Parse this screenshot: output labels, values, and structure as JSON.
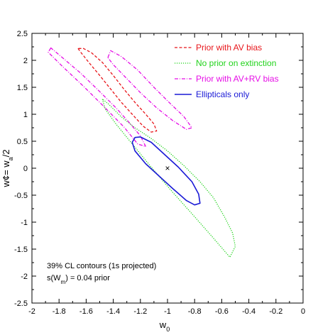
{
  "chart_data": {
    "type": "line",
    "xlabel": "w",
    "xlabel_sub": "0",
    "ylabel": "w¢= w",
    "ylabel_sub": "a",
    "ylabel_suffix": "/2",
    "xlim": [
      -2,
      0
    ],
    "ylim": [
      -2.5,
      2.5
    ],
    "x_ticks": [
      -2,
      -1.8,
      -1.6,
      -1.4,
      -1.2,
      -1,
      -0.8,
      -0.6,
      -0.4,
      -0.2,
      0
    ],
    "x_tick_labels": [
      "-2",
      "-1.8",
      "-1.6",
      "-1.4",
      "-1.2",
      "-1",
      "-0.8",
      "-0.6",
      "-0.4",
      "-0.2",
      "0"
    ],
    "y_ticks": [
      -2.5,
      -2,
      -1.5,
      -1,
      -0.5,
      0,
      0.5,
      1,
      1.5,
      2,
      2.5
    ],
    "y_tick_labels": [
      "-2.5",
      "-2",
      "-1.5",
      "-1",
      "-0.5",
      "0",
      "0.5",
      "1",
      "1.5",
      "2",
      "2.5"
    ],
    "grid": false,
    "legend_position": "top-right",
    "fiducial_marker": {
      "x": -1,
      "y": 0,
      "symbol": "×"
    },
    "annotations": [
      "39% CL contours (1s projected)",
      "s(W",
      "m",
      ") = 0.04 prior"
    ],
    "series": [
      {
        "name": "Prior with AV bias",
        "color": "#e8161b",
        "dash": "dashed",
        "points": [
          [
            -1.66,
            2.22
          ],
          [
            -1.64,
            2.15
          ],
          [
            -1.58,
            1.96
          ],
          [
            -1.5,
            1.72
          ],
          [
            -1.42,
            1.47
          ],
          [
            -1.34,
            1.22
          ],
          [
            -1.26,
            1.0
          ],
          [
            -1.18,
            0.78
          ],
          [
            -1.12,
            0.67
          ],
          [
            -1.08,
            0.69
          ],
          [
            -1.1,
            0.82
          ],
          [
            -1.16,
            1.0
          ],
          [
            -1.24,
            1.22
          ],
          [
            -1.32,
            1.46
          ],
          [
            -1.4,
            1.72
          ],
          [
            -1.48,
            1.96
          ],
          [
            -1.56,
            2.14
          ],
          [
            -1.62,
            2.22
          ],
          [
            -1.66,
            2.22
          ]
        ]
      },
      {
        "name": "No prior on extinction",
        "color": "#22d31c",
        "dash": "dotted",
        "points": [
          [
            -1.48,
            1.28
          ],
          [
            -1.46,
            1.1
          ],
          [
            -1.38,
            0.82
          ],
          [
            -1.26,
            0.45
          ],
          [
            -1.12,
            0.02
          ],
          [
            -0.96,
            -0.45
          ],
          [
            -0.8,
            -0.9
          ],
          [
            -0.66,
            -1.3
          ],
          [
            -0.54,
            -1.65
          ],
          [
            -0.5,
            -1.45
          ],
          [
            -0.52,
            -1.2
          ],
          [
            -0.58,
            -0.9
          ],
          [
            -0.66,
            -0.55
          ],
          [
            -0.76,
            -0.25
          ],
          [
            -0.88,
            0.05
          ],
          [
            -1.0,
            0.32
          ],
          [
            -1.12,
            0.55
          ],
          [
            -1.24,
            0.75
          ],
          [
            -1.34,
            0.95
          ],
          [
            -1.44,
            1.2
          ],
          [
            -1.48,
            1.28
          ]
        ]
      },
      {
        "name": "Prior with AV+RV bias",
        "color": "#e60ee6",
        "dash": "dash-dot",
        "points": [
          [
            -1.86,
            2.23
          ],
          [
            -1.88,
            2.15
          ],
          [
            -1.78,
            1.9
          ],
          [
            -1.62,
            1.52
          ],
          [
            -1.46,
            1.12
          ],
          [
            -1.32,
            0.76
          ],
          [
            -1.22,
            0.45
          ],
          [
            -1.16,
            0.4
          ],
          [
            -1.2,
            0.6
          ],
          [
            -1.28,
            0.84
          ],
          [
            -1.38,
            1.12
          ],
          [
            -1.5,
            1.42
          ],
          [
            -1.64,
            1.76
          ],
          [
            -1.78,
            2.06
          ],
          [
            -1.86,
            2.23
          ]
        ],
        "points_b": [
          [
            -1.44,
            2.05
          ],
          [
            -1.42,
            2.18
          ],
          [
            -1.34,
            2.07
          ],
          [
            -1.22,
            1.82
          ],
          [
            -1.1,
            1.5
          ],
          [
            -0.98,
            1.2
          ],
          [
            -0.88,
            0.96
          ],
          [
            -0.82,
            0.75
          ],
          [
            -0.86,
            0.72
          ],
          [
            -0.96,
            0.88
          ],
          [
            -1.08,
            1.12
          ],
          [
            -1.2,
            1.4
          ],
          [
            -1.3,
            1.66
          ],
          [
            -1.4,
            1.92
          ],
          [
            -1.44,
            2.05
          ]
        ]
      },
      {
        "name": "Ellipticals only",
        "color": "#1a1ad6",
        "dash": "solid",
        "points": [
          [
            -1.24,
            0.57
          ],
          [
            -1.2,
            0.58
          ],
          [
            -1.12,
            0.48
          ],
          [
            -1.02,
            0.25
          ],
          [
            -0.92,
            0.02
          ],
          [
            -0.82,
            -0.25
          ],
          [
            -0.77,
            -0.48
          ],
          [
            -0.76,
            -0.65
          ],
          [
            -0.8,
            -0.68
          ],
          [
            -0.86,
            -0.6
          ],
          [
            -0.96,
            -0.38
          ],
          [
            -1.06,
            -0.15
          ],
          [
            -1.16,
            0.08
          ],
          [
            -1.24,
            0.32
          ],
          [
            -1.26,
            0.48
          ],
          [
            -1.24,
            0.57
          ]
        ]
      }
    ]
  }
}
